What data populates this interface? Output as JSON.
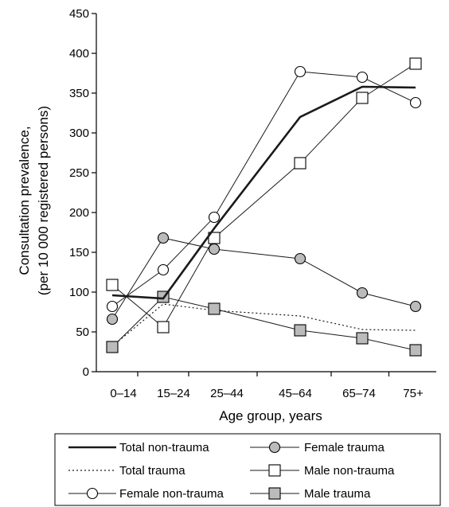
{
  "chart_data": {
    "type": "line",
    "categories": [
      "0–14",
      "15–24",
      "25–44",
      "45–64",
      "65–74",
      "75+"
    ],
    "ylabel_line1": "Consultation prevalence,",
    "ylabel_line2": "(per 10 000 registered persons)",
    "xlabel": "Age group, years",
    "ylim": [
      0,
      450
    ],
    "yticks": [
      0,
      50,
      100,
      150,
      200,
      250,
      300,
      350,
      400,
      450
    ],
    "grid": false,
    "legend_position": "bottom",
    "series": [
      {
        "name": "Total non-trauma",
        "style": "thick-solid",
        "marker": "none",
        "color": "#1a1a1a",
        "values": [
          96,
          92,
          180,
          320,
          358,
          357
        ]
      },
      {
        "name": "Total trauma",
        "style": "dotted",
        "marker": "none",
        "color": "#1a1a1a",
        "values": [
          32,
          85,
          77,
          70,
          53,
          52
        ]
      },
      {
        "name": "Female non-trauma",
        "style": "thin-solid",
        "marker": "circle-open",
        "color": "#1a1a1a",
        "values": [
          82,
          128,
          194,
          377,
          370,
          338
        ]
      },
      {
        "name": "Female trauma",
        "style": "thin-solid",
        "marker": "circle-gray",
        "color": "#1a1a1a",
        "values": [
          66,
          168,
          154,
          142,
          99,
          82
        ]
      },
      {
        "name": "Male non-trauma",
        "style": "thin-solid",
        "marker": "square-open",
        "color": "#1a1a1a",
        "values": [
          109,
          56,
          168,
          262,
          344,
          387
        ]
      },
      {
        "name": "Male trauma",
        "style": "thin-solid",
        "marker": "square-gray",
        "color": "#1a1a1a",
        "values": [
          31,
          94,
          79,
          52,
          42,
          27
        ]
      }
    ],
    "legend_order": [
      "Total non-trauma",
      "Female trauma",
      "Total trauma",
      "Male non-trauma",
      "Female non-trauma",
      "Male trauma"
    ],
    "marker_fill_gray": "#bbbbbb"
  }
}
